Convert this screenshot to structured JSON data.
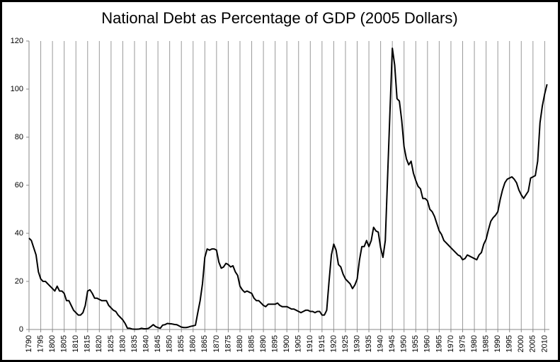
{
  "chart_data": {
    "type": "line",
    "title": "National Debt as Percentage of GDP (2005 Dollars)",
    "x": [
      1790,
      1791,
      1792,
      1793,
      1794,
      1795,
      1796,
      1797,
      1798,
      1799,
      1800,
      1801,
      1802,
      1803,
      1804,
      1805,
      1806,
      1807,
      1808,
      1809,
      1810,
      1811,
      1812,
      1813,
      1814,
      1815,
      1816,
      1817,
      1818,
      1819,
      1820,
      1821,
      1822,
      1823,
      1824,
      1825,
      1826,
      1827,
      1828,
      1829,
      1830,
      1831,
      1832,
      1833,
      1834,
      1835,
      1836,
      1837,
      1838,
      1839,
      1840,
      1841,
      1842,
      1843,
      1844,
      1845,
      1846,
      1847,
      1848,
      1849,
      1850,
      1851,
      1852,
      1853,
      1854,
      1855,
      1856,
      1857,
      1858,
      1859,
      1860,
      1861,
      1862,
      1863,
      1864,
      1865,
      1866,
      1867,
      1868,
      1869,
      1870,
      1871,
      1872,
      1873,
      1874,
      1875,
      1876,
      1877,
      1878,
      1879,
      1880,
      1881,
      1882,
      1883,
      1884,
      1885,
      1886,
      1887,
      1888,
      1889,
      1890,
      1891,
      1892,
      1893,
      1894,
      1895,
      1896,
      1897,
      1898,
      1899,
      1900,
      1901,
      1902,
      1903,
      1904,
      1905,
      1906,
      1907,
      1908,
      1909,
      1910,
      1911,
      1912,
      1913,
      1914,
      1915,
      1916,
      1917,
      1918,
      1919,
      1920,
      1921,
      1922,
      1923,
      1924,
      1925,
      1926,
      1927,
      1928,
      1929,
      1930,
      1931,
      1932,
      1933,
      1934,
      1935,
      1936,
      1937,
      1938,
      1939,
      1940,
      1941,
      1942,
      1943,
      1944,
      1945,
      1946,
      1947,
      1948,
      1949,
      1950,
      1951,
      1952,
      1953,
      1954,
      1955,
      1956,
      1957,
      1958,
      1959,
      1960,
      1961,
      1962,
      1963,
      1964,
      1965,
      1966,
      1967,
      1968,
      1969,
      1970,
      1971,
      1972,
      1973,
      1974,
      1975,
      1976,
      1977,
      1978,
      1979,
      1980,
      1981,
      1982,
      1983,
      1984,
      1985,
      1986,
      1987,
      1988,
      1989,
      1990,
      1991,
      1992,
      1993,
      1994,
      1995,
      1996,
      1997,
      1998,
      1999,
      2000,
      2001,
      2002,
      2003,
      2004,
      2005,
      2006,
      2007,
      2008,
      2009,
      2010,
      2011
    ],
    "series": [
      {
        "color": "#000000",
        "values": [
          38,
          37,
          34,
          31,
          24,
          21,
          20,
          20,
          19,
          18,
          17,
          16,
          18,
          16,
          16,
          15,
          12,
          12,
          10,
          8,
          7,
          6,
          6,
          7,
          10,
          16,
          16.5,
          15,
          13,
          13,
          12.5,
          12,
          12,
          12,
          10,
          9,
          8,
          7.5,
          6,
          5,
          4,
          2.5,
          0.5,
          0.5,
          0.2,
          0.1,
          0.1,
          0.2,
          0.5,
          0.3,
          0.3,
          0.5,
          1.2,
          2,
          1.2,
          0.8,
          0.5,
          1.8,
          2,
          2.5,
          2.4,
          2.3,
          2.1,
          2,
          1.5,
          1,
          0.8,
          0.8,
          1,
          1.3,
          1.5,
          1.8,
          7,
          12,
          19,
          30,
          33.5,
          33,
          33.5,
          33.5,
          33,
          28,
          25.5,
          26,
          27.5,
          27,
          26,
          26.5,
          24,
          22.5,
          18,
          16.5,
          15.5,
          16,
          15.5,
          15,
          13,
          12,
          12,
          11,
          10,
          9.5,
          10.5,
          10.5,
          10.5,
          10.5,
          11,
          10,
          9.5,
          9.5,
          9.5,
          9,
          8.5,
          8.5,
          8,
          7.5,
          7,
          7.5,
          8,
          8,
          7.5,
          7.5,
          7,
          7.5,
          7.5,
          6,
          6,
          8,
          20,
          31,
          35.5,
          33,
          27,
          26,
          23,
          21,
          20,
          19,
          17,
          18.5,
          21,
          29,
          34.5,
          34.5,
          37,
          34.5,
          37,
          42.5,
          41,
          40.5,
          34,
          30,
          37,
          64,
          91,
          117,
          110,
          96,
          95,
          87,
          76,
          71,
          68.5,
          70,
          65,
          62,
          59.5,
          58.5,
          54.5,
          54.5,
          53.5,
          50,
          49,
          47,
          44,
          41,
          39.5,
          37,
          36,
          35,
          34,
          33,
          32,
          31,
          30.5,
          29,
          29.5,
          31,
          30.5,
          30,
          29.5,
          29,
          31,
          32,
          35.5,
          37.5,
          41.5,
          45,
          46.5,
          47.5,
          49,
          54,
          58,
          61,
          62.5,
          63,
          63.5,
          62.5,
          61,
          58,
          56,
          54.5,
          56,
          57.5,
          63,
          63.5,
          64,
          70,
          86,
          93,
          98,
          102
        ]
      }
    ],
    "xlim": [
      1790,
      2012
    ],
    "ylim": [
      0,
      120
    ],
    "xticks": [
      1790,
      1795,
      1800,
      1805,
      1810,
      1815,
      1820,
      1825,
      1830,
      1835,
      1840,
      1845,
      1850,
      1855,
      1860,
      1865,
      1870,
      1875,
      1880,
      1885,
      1890,
      1895,
      1900,
      1905,
      1910,
      1915,
      1920,
      1925,
      1930,
      1935,
      1940,
      1945,
      1950,
      1955,
      1960,
      1965,
      1970,
      1975,
      1980,
      1985,
      1990,
      1995,
      2000,
      2005,
      2010
    ],
    "yticks": [
      0,
      20,
      40,
      60,
      80,
      100,
      120
    ],
    "grid": true
  }
}
